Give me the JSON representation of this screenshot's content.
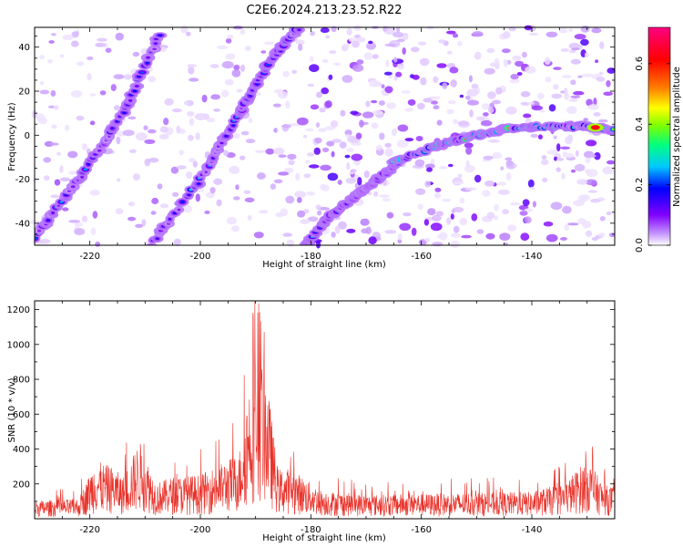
{
  "figure_title": "C2E6.2024.213.23.52.R22",
  "chart_data": [
    {
      "type": "heatmap",
      "xlabel": "Height of straight line (km)",
      "ylabel": "Frequency (Hz)",
      "xlim": [
        -230,
        -125
      ],
      "ylim": [
        -50,
        49
      ],
      "x_ticks": [
        -220,
        -200,
        -180,
        -160,
        -140
      ],
      "y_ticks": [
        -40,
        -20,
        0,
        20,
        40
      ],
      "colorbar": {
        "label": "Normalized spectral amplitude",
        "range": [
          0.0,
          0.72
        ],
        "ticks": [
          0.0,
          0.2,
          0.4,
          0.6
        ],
        "colormap": [
          "#ffffff",
          "#c79bff",
          "#8000ff",
          "#0000ff",
          "#00c8ff",
          "#00ff80",
          "#80ff00",
          "#ffff00",
          "#ff8000",
          "#ff0000",
          "#ff0080"
        ]
      },
      "features": [
        {
          "x": [
            -231,
            -222,
            -214,
            -207
          ],
          "y": [
            -50,
            -20,
            10,
            48
          ],
          "peak": 0.3
        },
        {
          "x": [
            -209,
            -200,
            -193,
            -187,
            -182
          ],
          "y": [
            -50,
            -20,
            10,
            35,
            49
          ],
          "peak": 0.32
        },
        {
          "x": [
            -181,
            -177,
            -172,
            -168,
            -164
          ],
          "y": [
            -50,
            -38,
            -28,
            -20,
            -12
          ],
          "peak": 0.28
        },
        {
          "x": [
            -165,
            -157,
            -150,
            -144,
            -136,
            -130,
            -125
          ],
          "y": [
            -12,
            -5,
            0,
            3,
            4,
            4,
            2
          ],
          "peak": 0.66
        }
      ]
    },
    {
      "type": "line",
      "xlabel": "Height of straight line (km)",
      "ylabel": "SNR (10 * v/v)",
      "xlim": [
        -230,
        -125
      ],
      "ylim": [
        0,
        1250
      ],
      "x_ticks": [
        -220,
        -200,
        -180,
        -160,
        -140
      ],
      "y_ticks": [
        200,
        400,
        600,
        800,
        1000,
        1200
      ],
      "series_color": "#e8322a",
      "envelope": {
        "x": [
          -230,
          -222,
          -219,
          -216,
          -214,
          -211,
          -208,
          -205,
          -200,
          -196,
          -193,
          -191,
          -189.5,
          -188,
          -186,
          -184,
          -182,
          -178,
          -170,
          -160,
          -150,
          -140,
          -134,
          -130,
          -127,
          -125
        ],
        "y": [
          90,
          100,
          290,
          260,
          210,
          390,
          180,
          210,
          220,
          280,
          330,
          720,
          900,
          720,
          250,
          250,
          220,
          140,
          120,
          125,
          130,
          135,
          180,
          300,
          170,
          160
        ]
      }
    }
  ]
}
